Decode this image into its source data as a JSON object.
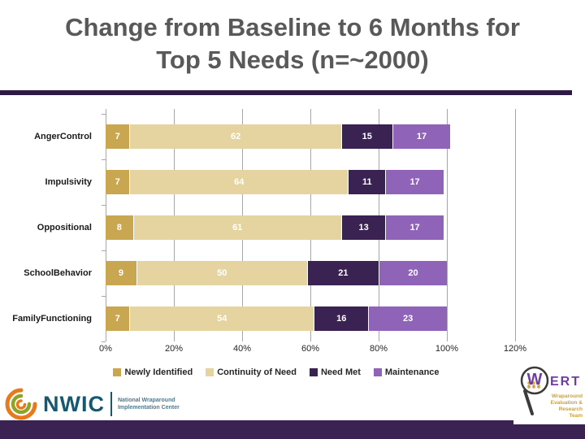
{
  "slide": {
    "title_line1": "Change from Baseline to 6 Months for",
    "title_line2": "Top 5 Needs (n=~2000)"
  },
  "chart_data": {
    "type": "bar",
    "orientation": "horizontal",
    "stacked": true,
    "title": "Change from Baseline to 6 Months for Top 5 Needs (n=~2000)",
    "categories": [
      "AngerControl",
      "Impulsivity",
      "Oppositional",
      "SchoolBehavior",
      "FamilyFunctioning"
    ],
    "series": [
      {
        "name": "Newly Identified",
        "color": "#C9A750",
        "values": [
          7,
          7,
          8,
          9,
          7
        ]
      },
      {
        "name": "Continuity of Need",
        "color": "#E5D3A0",
        "values": [
          62,
          64,
          61,
          50,
          54
        ]
      },
      {
        "name": "Need Met",
        "color": "#3A2352",
        "values": [
          15,
          11,
          13,
          21,
          16
        ]
      },
      {
        "name": "Maintenance",
        "color": "#8E63B8",
        "values": [
          17,
          17,
          17,
          20,
          23
        ]
      }
    ],
    "xlim": [
      0,
      120
    ],
    "x_ticks": [
      "0%",
      "20%",
      "40%",
      "60%",
      "80%",
      "100%",
      "120%"
    ],
    "grid": true,
    "legend_position": "bottom",
    "value_label_color": "#ffffff"
  },
  "footer": {
    "nwic": {
      "abbr": "NWIC",
      "name_line1": "National Wraparound",
      "name_line2": "Implementation Center"
    },
    "wert": {
      "w": "W",
      "ert": "ERT",
      "tagline_lines": [
        "Wraparound",
        "Evaluation &",
        "Research",
        "Team"
      ]
    }
  },
  "colors": {
    "title_text": "#595959",
    "title_rule": "#2D1B45",
    "gridline": "#A6A6A6",
    "footer_bar": "#3A2353",
    "nwic_teal": "#15586F",
    "wert_purple": "#6E3FA3",
    "wert_gold": "#C9A23F"
  }
}
